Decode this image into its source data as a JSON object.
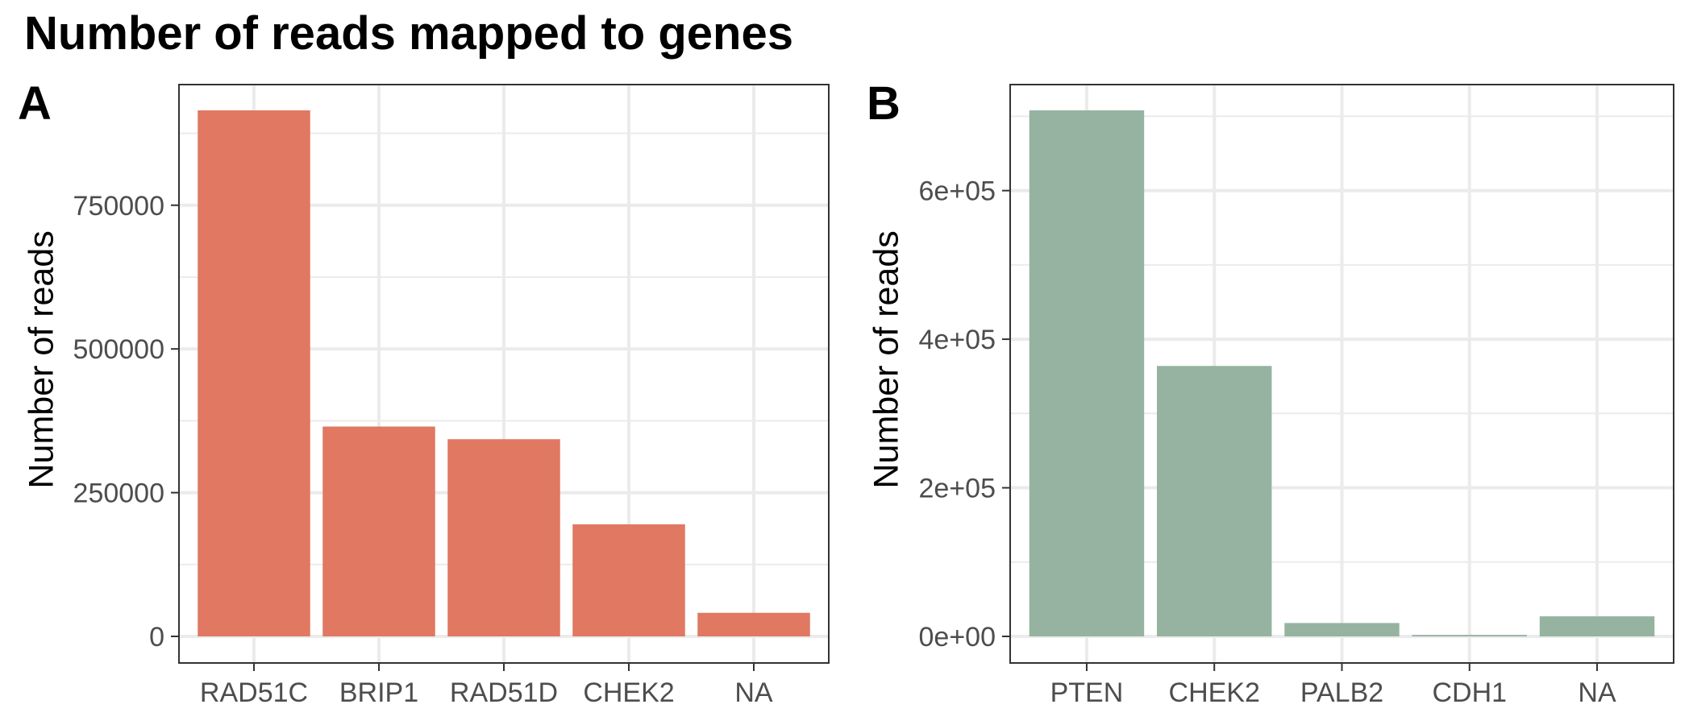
{
  "title": "Number of reads mapped to genes",
  "chart_data": [
    {
      "type": "bar",
      "panel_label": "A",
      "categories": [
        "RAD51C",
        "BRIP1",
        "RAD51D",
        "CHEK2",
        "NA"
      ],
      "values": [
        915000,
        365000,
        343000,
        195000,
        41000
      ],
      "ylabel": "Number of reads",
      "xlabel": "",
      "ylim": [
        0,
        1000000
      ],
      "yticks": [
        0,
        250000,
        500000,
        750000
      ],
      "ytick_labels": [
        "0",
        "250000",
        "500000",
        "750000"
      ],
      "bar_color": "#E07862",
      "grid": true
    },
    {
      "type": "bar",
      "panel_label": "B",
      "categories": [
        "PTEN",
        "CHEK2",
        "PALB2",
        "CDH1",
        "NA"
      ],
      "values": [
        708000,
        364000,
        18000,
        2000,
        27000
      ],
      "ylabel": "Number of reads",
      "xlabel": "",
      "ylim": [
        0,
        800000
      ],
      "yticks": [
        0,
        200000,
        400000,
        600000
      ],
      "ytick_labels": [
        "0e+00",
        "2e+05",
        "4e+05",
        "6e+05"
      ],
      "bar_color": "#95B3A0",
      "grid": true
    }
  ]
}
